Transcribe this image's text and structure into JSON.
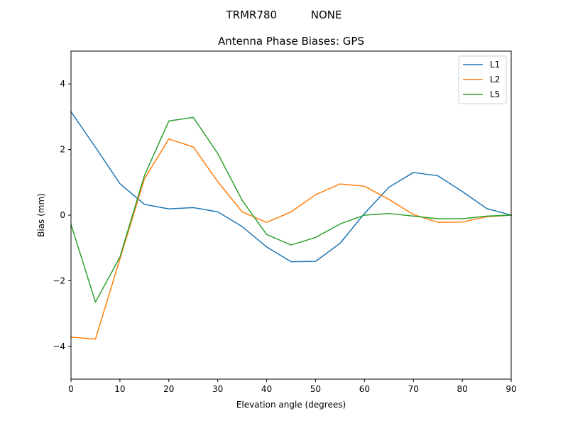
{
  "suptitle": "TRMR780          NONE",
  "chart_data": {
    "type": "line",
    "title": "Antenna Phase Biases: GPS",
    "xlabel": "Elevation angle (degrees)",
    "ylabel": "Bias (mm)",
    "xlim": [
      0,
      90
    ],
    "ylim": [
      -5,
      5
    ],
    "xticks": [
      0,
      10,
      20,
      30,
      40,
      50,
      60,
      70,
      80,
      90
    ],
    "yticks": [
      -4,
      -2,
      0,
      2,
      4
    ],
    "xtick_labels": [
      "0",
      "10",
      "20",
      "30",
      "40",
      "50",
      "60",
      "70",
      "80",
      "90"
    ],
    "ytick_labels": [
      "−4",
      "−2",
      "0",
      "2",
      "4"
    ],
    "grid": false,
    "legend_position": "top-right",
    "x": [
      0,
      5,
      10,
      15,
      20,
      25,
      30,
      35,
      40,
      45,
      50,
      55,
      60,
      65,
      70,
      75,
      80,
      85,
      90
    ],
    "series": [
      {
        "name": "L1",
        "color": "#1f77b4",
        "values": [
          3.15,
          2.07,
          0.96,
          0.33,
          0.19,
          0.23,
          0.1,
          -0.35,
          -0.97,
          -1.42,
          -1.41,
          -0.86,
          0.05,
          0.85,
          1.3,
          1.2,
          0.72,
          0.2,
          0.0
        ]
      },
      {
        "name": "L2",
        "color": "#ff7f0e",
        "values": [
          -3.72,
          -3.78,
          -1.34,
          1.1,
          2.32,
          2.08,
          1.02,
          0.1,
          -0.22,
          0.1,
          0.62,
          0.95,
          0.88,
          0.48,
          0.02,
          -0.22,
          -0.21,
          -0.05,
          0.0
        ]
      },
      {
        "name": "L5",
        "color": "#2ca02c",
        "values": [
          -0.28,
          -2.65,
          -1.28,
          1.2,
          2.87,
          2.98,
          1.88,
          0.45,
          -0.59,
          -0.91,
          -0.68,
          -0.27,
          0.0,
          0.05,
          -0.03,
          -0.11,
          -0.11,
          -0.03,
          0.0
        ]
      }
    ]
  }
}
